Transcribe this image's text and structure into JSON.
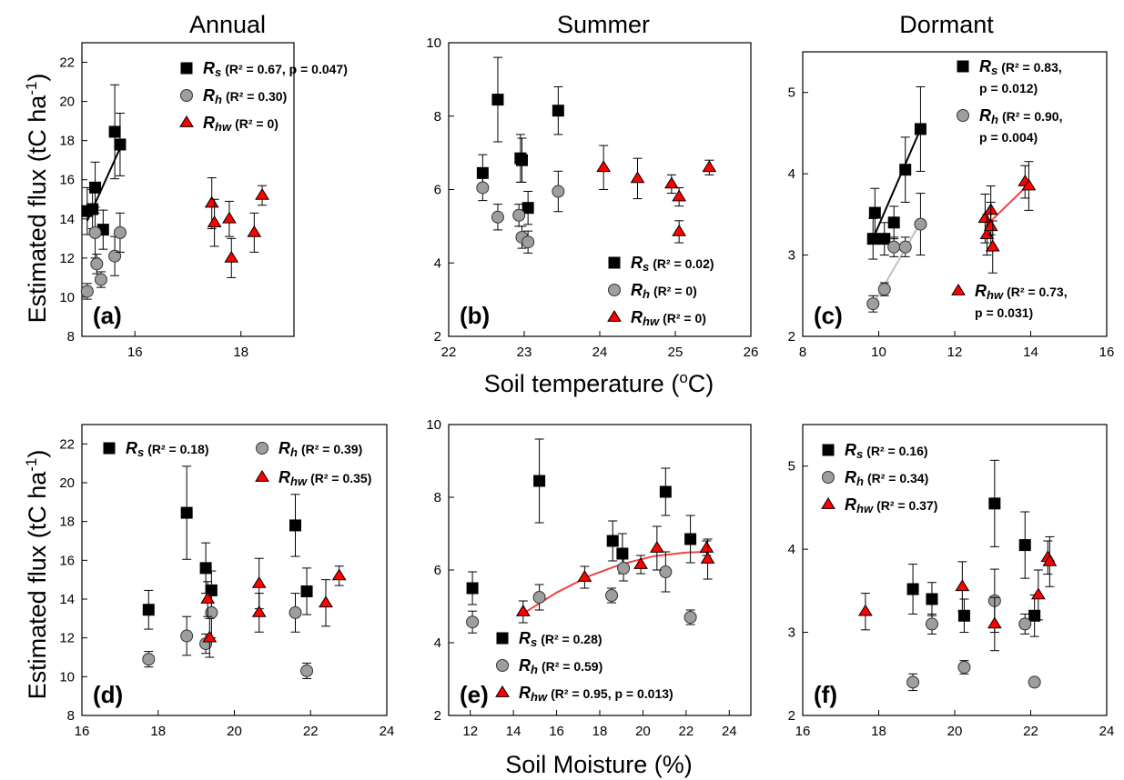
{
  "headings": {
    "col_titles": [
      "Annual",
      "Summer",
      "Dormant"
    ],
    "ylabel": "Estimated flux (tC ha",
    "ylabel_sup": "-1",
    "ylabel_close": ")",
    "xlabel_temp": "Soil temperature (",
    "xlabel_temp_sup": "o",
    "xlabel_temp_close": "C)",
    "xlabel_moist": "Soil Moisture (%)"
  },
  "colors": {
    "rs": "#000000",
    "rh": "#9e9e9e",
    "rhw": "#ff0000",
    "fit_rs": "#000000",
    "fit_rh": "#bfbfbf",
    "fit_rhw": "#ef4444"
  },
  "chart_data": [
    {
      "panel": "(a)",
      "type": "scatter",
      "xlim": [
        15,
        19
      ],
      "ylim": [
        8,
        23
      ],
      "xticks": [
        "16",
        "18"
      ],
      "yticks": [
        "8",
        "10",
        "12",
        "14",
        "16",
        "18",
        "20",
        "22"
      ],
      "series": [
        {
          "name": "Rs",
          "legend_label": "(R² = 0.67, p = 0.047)",
          "marker": "square",
          "x": [
            15.1,
            15.2,
            15.25,
            15.4,
            15.62,
            15.72
          ],
          "y": [
            14.4,
            14.5,
            15.6,
            13.45,
            18.45,
            17.8
          ],
          "err": [
            1.2,
            1.0,
            1.3,
            1.0,
            2.4,
            1.6
          ],
          "fit": [
            [
              15.1,
              13.9
            ],
            [
              15.75,
              17.8
            ]
          ]
        },
        {
          "name": "Rh",
          "legend_label": "(R² = 0.30)",
          "marker": "circle",
          "x": [
            15.1,
            15.25,
            15.28,
            15.36,
            15.62,
            15.72
          ],
          "y": [
            10.3,
            13.3,
            11.7,
            10.9,
            12.1,
            13.3
          ],
          "err": [
            0.4,
            1.3,
            0.5,
            0.4,
            1.0,
            1.0
          ]
        },
        {
          "name": "Rhw",
          "legend_label": "(R² = 0)",
          "marker": "triangle",
          "x": [
            17.45,
            17.5,
            17.78,
            17.82,
            18.25,
            18.4
          ],
          "y": [
            14.8,
            13.8,
            14.0,
            12.0,
            13.3,
            15.2
          ],
          "err": [
            1.3,
            1.2,
            0.9,
            1.0,
            1.0,
            0.5
          ]
        }
      ]
    },
    {
      "panel": "(b)",
      "type": "scatter",
      "xlim": [
        22,
        26
      ],
      "ylim": [
        2,
        10
      ],
      "xticks": [
        "22",
        "23",
        "24",
        "25",
        "26"
      ],
      "yticks": [
        "2",
        "4",
        "6",
        "8",
        "10"
      ],
      "series": [
        {
          "name": "Rs",
          "legend_label": "(R² = 0.02)",
          "marker": "square",
          "x": [
            22.45,
            22.65,
            22.95,
            22.97,
            23.05,
            23.45
          ],
          "y": [
            6.45,
            8.45,
            6.85,
            6.8,
            5.5,
            8.15
          ],
          "err": [
            0.5,
            1.15,
            0.65,
            0.6,
            0.45,
            0.65
          ]
        },
        {
          "name": "Rh",
          "legend_label": "(R² = 0)",
          "marker": "circle",
          "x": [
            22.45,
            22.65,
            22.93,
            22.97,
            23.05,
            23.45
          ],
          "y": [
            6.05,
            5.25,
            5.3,
            4.7,
            4.57,
            5.95
          ],
          "err": [
            0.35,
            0.35,
            0.3,
            0.3,
            0.3,
            0.55
          ]
        },
        {
          "name": "Rhw",
          "legend_label": "(R² = 0)",
          "marker": "triangle",
          "x": [
            24.05,
            24.5,
            24.95,
            25.05,
            25.05,
            25.45
          ],
          "y": [
            6.6,
            6.3,
            6.15,
            5.8,
            4.85,
            6.6
          ],
          "err": [
            0.6,
            0.55,
            0.25,
            0.25,
            0.3,
            0.2
          ]
        }
      ]
    },
    {
      "panel": "(c)",
      "type": "scatter",
      "xlim": [
        8,
        16
      ],
      "ylim": [
        2,
        5.5
      ],
      "xticks": [
        "8",
        "10",
        "12",
        "14",
        "16"
      ],
      "yticks": [
        "2",
        "3",
        "4",
        "5"
      ],
      "series": [
        {
          "name": "Rs",
          "legend_label": "(R² = 0.83,",
          "legend_label2": "p = 0.012)",
          "marker": "square",
          "x": [
            9.85,
            9.9,
            10.15,
            10.4,
            10.7,
            11.1
          ],
          "y": [
            3.2,
            3.52,
            3.2,
            3.4,
            4.05,
            4.55
          ],
          "err": [
            0.25,
            0.3,
            0.2,
            0.2,
            0.4,
            0.52
          ],
          "fit": [
            [
              9.8,
              3.15
            ],
            [
              11.1,
              4.55
            ]
          ]
        },
        {
          "name": "Rh",
          "legend_label": "(R² = 0.90,",
          "legend_label2": "p = 0.004)",
          "marker": "circle",
          "x": [
            9.85,
            10.15,
            10.4,
            10.7,
            11.1
          ],
          "y": [
            2.4,
            2.58,
            3.1,
            3.1,
            3.38
          ],
          "err": [
            0.1,
            0.08,
            0.12,
            0.12,
            0.38
          ],
          "fit": [
            [
              9.8,
              2.35
            ],
            [
              11.1,
              3.4
            ]
          ]
        },
        {
          "name": "Rhw",
          "legend_label": "(R² = 0.73,",
          "legend_label2": "p = 0.031)",
          "marker": "triangle",
          "x": [
            12.8,
            12.85,
            12.95,
            12.95,
            13.0,
            13.85,
            13.95
          ],
          "y": [
            3.45,
            3.25,
            3.55,
            3.35,
            3.1,
            3.9,
            3.85
          ],
          "err": [
            0.3,
            0.25,
            0.3,
            0.3,
            0.32,
            0.2,
            0.3
          ],
          "fit": [
            [
              12.8,
              3.35
            ],
            [
              13.9,
              3.85
            ]
          ]
        }
      ]
    },
    {
      "panel": "(d)",
      "type": "scatter",
      "xlim": [
        16,
        24
      ],
      "ylim": [
        8,
        23
      ],
      "xticks": [
        "16",
        "18",
        "20",
        "22",
        "24"
      ],
      "yticks": [
        "8",
        "10",
        "12",
        "14",
        "16",
        "18",
        "20",
        "22"
      ],
      "series": [
        {
          "name": "Rs",
          "legend_label": "(R² = 0.18)",
          "marker": "square",
          "x": [
            17.75,
            18.75,
            19.25,
            19.4,
            21.6,
            21.9
          ],
          "y": [
            13.45,
            18.45,
            15.6,
            14.45,
            17.8,
            14.4
          ],
          "err": [
            1.0,
            2.4,
            1.3,
            1.0,
            1.6,
            1.2
          ]
        },
        {
          "name": "Rh",
          "legend_label": "(R² = 0.39)",
          "marker": "circle",
          "x": [
            17.75,
            18.75,
            19.25,
            19.4,
            21.6,
            21.9
          ],
          "y": [
            10.9,
            12.1,
            11.7,
            13.3,
            13.3,
            10.3
          ],
          "err": [
            0.4,
            1.0,
            0.5,
            1.3,
            1.0,
            0.4
          ]
        },
        {
          "name": "Rhw",
          "legend_label": "(R² = 0.35)",
          "marker": "triangle",
          "x": [
            19.3,
            19.35,
            20.65,
            20.65,
            22.4,
            22.75
          ],
          "y": [
            14.0,
            12.0,
            14.8,
            13.3,
            13.8,
            15.2
          ],
          "err": [
            0.9,
            1.0,
            1.3,
            1.0,
            1.2,
            0.5
          ]
        }
      ]
    },
    {
      "panel": "(e)",
      "type": "scatter",
      "xlim": [
        11,
        25
      ],
      "ylim": [
        2,
        10
      ],
      "xticks": [
        "12",
        "14",
        "16",
        "18",
        "20",
        "22",
        "24"
      ],
      "yticks": [
        "2",
        "4",
        "6",
        "8",
        "10"
      ],
      "series": [
        {
          "name": "Rs",
          "legend_label": "(R² = 0.28)",
          "marker": "square",
          "x": [
            12.1,
            15.2,
            18.6,
            19.05,
            21.05,
            22.2
          ],
          "y": [
            5.5,
            8.45,
            6.8,
            6.45,
            8.15,
            6.85
          ],
          "err": [
            0.45,
            1.15,
            0.55,
            0.55,
            0.65,
            0.65
          ]
        },
        {
          "name": "Rh",
          "legend_label": "(R² = 0.59)",
          "marker": "circle",
          "x": [
            12.1,
            15.2,
            18.55,
            19.1,
            21.05,
            22.2
          ],
          "y": [
            4.57,
            5.25,
            5.3,
            6.05,
            5.95,
            4.7
          ],
          "err": [
            0.3,
            0.35,
            0.2,
            0.35,
            0.55,
            0.2
          ]
        },
        {
          "name": "Rhw",
          "legend_label": "(R² = 0.95, p = 0.013)",
          "marker": "triangle",
          "x": [
            14.45,
            17.3,
            19.9,
            20.65,
            22.95,
            23.0
          ],
          "y": [
            4.85,
            5.8,
            6.15,
            6.6,
            6.6,
            6.3
          ],
          "err": [
            0.3,
            0.3,
            0.25,
            0.6,
            0.2,
            0.55
          ],
          "fit": [
            [
              14.5,
              4.82
            ],
            [
              16,
              5.38
            ],
            [
              17.5,
              5.83
            ],
            [
              19,
              6.16
            ],
            [
              20.5,
              6.38
            ],
            [
              22,
              6.48
            ],
            [
              23,
              6.5
            ]
          ]
        }
      ]
    },
    {
      "panel": "(f)",
      "type": "scatter",
      "xlim": [
        16,
        24
      ],
      "ylim": [
        2,
        5.5
      ],
      "xticks": [
        "16",
        "18",
        "20",
        "22",
        "24"
      ],
      "yticks": [
        "2",
        "3",
        "4",
        "5"
      ],
      "series": [
        {
          "name": "Rs",
          "legend_label": "(R² = 0.16)",
          "marker": "square",
          "x": [
            18.9,
            19.4,
            20.25,
            21.05,
            21.85,
            22.1
          ],
          "y": [
            3.52,
            3.4,
            3.2,
            4.55,
            4.05,
            3.2
          ],
          "err": [
            0.3,
            0.2,
            0.2,
            0.52,
            0.4,
            0.25
          ]
        },
        {
          "name": "Rh",
          "legend_label": "(R² = 0.34)",
          "marker": "circle",
          "x": [
            18.9,
            19.4,
            20.25,
            21.05,
            21.85,
            22.1
          ],
          "y": [
            2.4,
            3.1,
            2.58,
            3.38,
            3.1,
            2.4
          ],
          "err": [
            0.1,
            0.12,
            0.08,
            0.38,
            0.12,
            0.05
          ]
        },
        {
          "name": "Rhw",
          "legend_label": "(R² = 0.37)",
          "marker": "triangle",
          "x": [
            17.65,
            20.2,
            21.05,
            22.2,
            22.45,
            22.5
          ],
          "y": [
            3.25,
            3.55,
            3.1,
            3.45,
            3.9,
            3.85
          ],
          "err": [
            0.22,
            0.3,
            0.32,
            0.3,
            0.2,
            0.3
          ]
        }
      ]
    }
  ]
}
